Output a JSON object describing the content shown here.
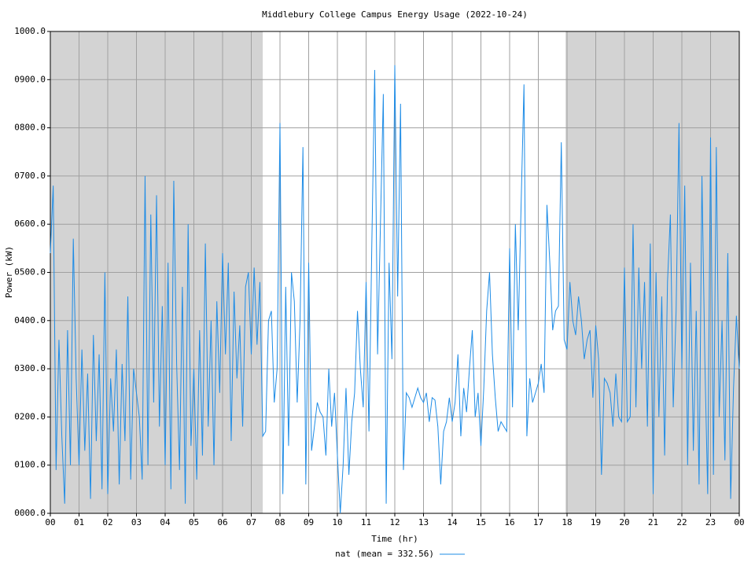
{
  "chart_data": {
    "type": "line",
    "title": "Middlebury College Campus Energy Usage (2022-10-24)",
    "x_label": "Time (hr)",
    "y_label": "Power (kW)",
    "xlim": [
      0,
      24
    ],
    "ylim": [
      0,
      1000
    ],
    "xticks": [
      {
        "value": 0,
        "label": "00"
      },
      {
        "value": 1,
        "label": "01"
      },
      {
        "value": 2,
        "label": "02"
      },
      {
        "value": 3,
        "label": "03"
      },
      {
        "value": 4,
        "label": "04"
      },
      {
        "value": 5,
        "label": "05"
      },
      {
        "value": 6,
        "label": "06"
      },
      {
        "value": 7,
        "label": "07"
      },
      {
        "value": 8,
        "label": "08"
      },
      {
        "value": 9,
        "label": "09"
      },
      {
        "value": 10,
        "label": "10"
      },
      {
        "value": 11,
        "label": "11"
      },
      {
        "value": 12,
        "label": "12"
      },
      {
        "value": 13,
        "label": "13"
      },
      {
        "value": 14,
        "label": "14"
      },
      {
        "value": 15,
        "label": "15"
      },
      {
        "value": 16,
        "label": "16"
      },
      {
        "value": 17,
        "label": "17"
      },
      {
        "value": 18,
        "label": "18"
      },
      {
        "value": 19,
        "label": "19"
      },
      {
        "value": 20,
        "label": "20"
      },
      {
        "value": 21,
        "label": "21"
      },
      {
        "value": 22,
        "label": "22"
      },
      {
        "value": 23,
        "label": "23"
      },
      {
        "value": 24,
        "label": "00"
      }
    ],
    "yticks": [
      {
        "value": 0,
        "label": "0000.0"
      },
      {
        "value": 100,
        "label": "0100.0"
      },
      {
        "value": 200,
        "label": "0200.0"
      },
      {
        "value": 300,
        "label": "0300.0"
      },
      {
        "value": 400,
        "label": "0400.0"
      },
      {
        "value": 500,
        "label": "0500.0"
      },
      {
        "value": 600,
        "label": "0600.0"
      },
      {
        "value": 700,
        "label": "0700.0"
      },
      {
        "value": 800,
        "label": "0800.0"
      },
      {
        "value": 900,
        "label": "0900.0"
      },
      {
        "value": 1000,
        "label": "1000.0"
      }
    ],
    "grid": true,
    "night_shading": [
      {
        "start": 0,
        "end": 7.4
      },
      {
        "start": 17.95,
        "end": 24
      }
    ],
    "shade_color": "#d3d3d3",
    "legend": "bottom",
    "x": [
      0,
      0.1,
      0.2,
      0.3,
      0.4,
      0.5,
      0.6,
      0.7,
      0.8,
      0.9,
      1,
      1.1,
      1.2,
      1.3,
      1.4,
      1.5,
      1.6,
      1.7,
      1.8,
      1.9,
      2,
      2.1,
      2.2,
      2.3,
      2.4,
      2.5,
      2.6,
      2.7,
      2.8,
      2.9,
      3,
      3.1,
      3.2,
      3.3,
      3.4,
      3.5,
      3.6,
      3.7,
      3.8,
      3.9,
      4,
      4.1,
      4.2,
      4.3,
      4.4,
      4.5,
      4.6,
      4.7,
      4.8,
      4.9,
      5,
      5.1,
      5.2,
      5.3,
      5.4,
      5.5,
      5.6,
      5.7,
      5.8,
      5.9,
      6,
      6.1,
      6.2,
      6.3,
      6.4,
      6.5,
      6.6,
      6.7,
      6.8,
      6.9,
      7,
      7.1,
      7.2,
      7.3,
      7.4,
      7.5,
      7.6,
      7.7,
      7.8,
      7.9,
      8,
      8.1,
      8.2,
      8.3,
      8.4,
      8.5,
      8.6,
      8.7,
      8.8,
      8.9,
      9,
      9.1,
      9.2,
      9.3,
      9.4,
      9.5,
      9.6,
      9.7,
      9.8,
      9.9,
      10,
      10.1,
      10.2,
      10.3,
      10.4,
      10.5,
      10.6,
      10.7,
      10.8,
      10.9,
      11,
      11.1,
      11.2,
      11.3,
      11.4,
      11.5,
      11.6,
      11.7,
      11.8,
      11.9,
      12,
      12.1,
      12.2,
      12.3,
      12.4,
      12.5,
      12.6,
      12.7,
      12.8,
      12.9,
      13,
      13.1,
      13.2,
      13.3,
      13.4,
      13.5,
      13.6,
      13.7,
      13.8,
      13.9,
      14,
      14.1,
      14.2,
      14.3,
      14.4,
      14.5,
      14.6,
      14.7,
      14.8,
      14.9,
      15,
      15.1,
      15.2,
      15.3,
      15.4,
      15.5,
      15.6,
      15.7,
      15.8,
      15.9,
      16,
      16.1,
      16.2,
      16.3,
      16.4,
      16.5,
      16.6,
      16.7,
      16.8,
      16.9,
      17,
      17.1,
      17.2,
      17.3,
      17.4,
      17.5,
      17.6,
      17.7,
      17.8,
      17.9,
      18,
      18.1,
      18.2,
      18.3,
      18.4,
      18.5,
      18.6,
      18.7,
      18.8,
      18.9,
      19,
      19.1,
      19.2,
      19.3,
      19.4,
      19.5,
      19.6,
      19.7,
      19.8,
      19.9,
      20,
      20.1,
      20.2,
      20.3,
      20.4,
      20.5,
      20.6,
      20.7,
      20.8,
      20.9,
      21,
      21.1,
      21.2,
      21.3,
      21.4,
      21.5,
      21.6,
      21.7,
      21.8,
      21.9,
      22,
      22.1,
      22.2,
      22.3,
      22.4,
      22.5,
      22.6,
      22.7,
      22.8,
      22.9,
      23,
      23.1,
      23.2,
      23.3,
      23.4,
      23.5,
      23.6,
      23.7,
      23.8,
      23.9,
      24
    ],
    "series": [
      {
        "name": "nat (mean = 332.56)",
        "color": "#1e8ce6",
        "values": [
          540,
          680,
          90,
          360,
          160,
          20,
          380,
          100,
          570,
          280,
          100,
          340,
          130,
          290,
          30,
          370,
          150,
          330,
          50,
          500,
          40,
          280,
          170,
          340,
          60,
          310,
          150,
          450,
          70,
          300,
          250,
          200,
          70,
          700,
          100,
          620,
          230,
          660,
          180,
          430,
          100,
          520,
          50,
          690,
          310,
          90,
          470,
          20,
          600,
          140,
          300,
          70,
          380,
          120,
          560,
          180,
          400,
          100,
          440,
          250,
          540,
          330,
          520,
          150,
          460,
          280,
          390,
          180,
          470,
          500,
          330,
          510,
          350,
          480,
          160,
          170,
          400,
          420,
          230,
          300,
          810,
          40,
          470,
          140,
          500,
          440,
          230,
          400,
          760,
          60,
          520,
          130,
          180,
          230,
          210,
          200,
          120,
          300,
          180,
          250,
          120,
          0,
          100,
          260,
          80,
          190,
          250,
          420,
          300,
          220,
          480,
          170,
          560,
          920,
          330,
          600,
          870,
          20,
          520,
          320,
          930,
          450,
          850,
          90,
          250,
          240,
          220,
          240,
          260,
          240,
          230,
          250,
          190,
          240,
          235,
          180,
          60,
          170,
          190,
          240,
          190,
          230,
          330,
          160,
          260,
          210,
          300,
          380,
          200,
          250,
          140,
          260,
          420,
          500,
          330,
          240,
          170,
          190,
          180,
          170,
          550,
          220,
          600,
          380,
          640,
          890,
          160,
          280,
          230,
          250,
          270,
          310,
          250,
          640,
          520,
          380,
          420,
          430,
          770,
          360,
          340,
          480,
          400,
          370,
          450,
          400,
          320,
          360,
          380,
          240,
          390,
          320,
          80,
          280,
          270,
          250,
          180,
          290,
          200,
          190,
          510,
          190,
          200,
          600,
          220,
          510,
          300,
          480,
          180,
          560,
          40,
          500,
          200,
          450,
          120,
          480,
          620,
          220,
          420,
          810,
          300,
          680,
          100,
          520,
          130,
          420,
          60,
          700,
          320,
          40,
          780,
          80,
          760,
          200,
          400,
          110,
          540,
          30,
          260,
          410,
          300
        ]
      }
    ]
  }
}
